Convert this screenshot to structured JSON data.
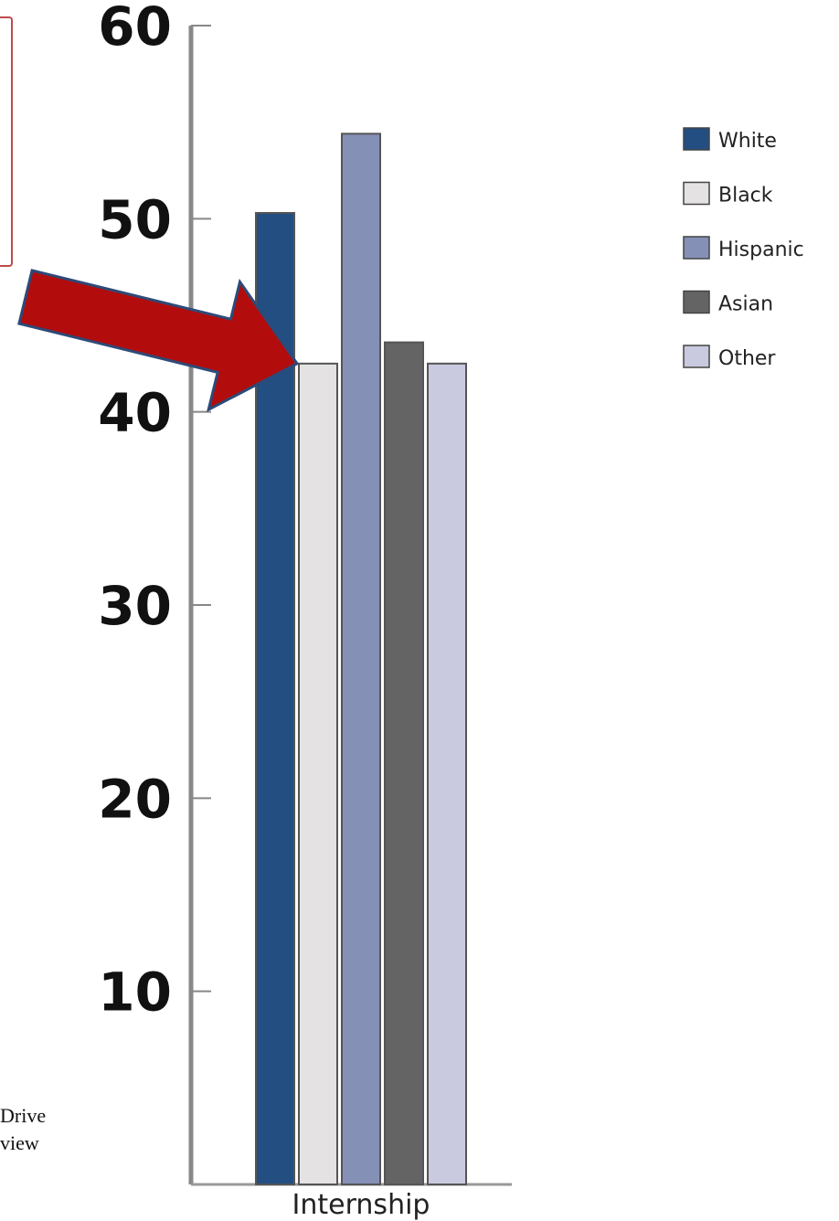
{
  "chart_data": {
    "type": "bar",
    "categories": [
      "Internship"
    ],
    "series": [
      {
        "name": "White",
        "values": [
          50.3
        ],
        "color": "#234e82"
      },
      {
        "name": "Black",
        "values": [
          42.5
        ],
        "color": "#e4e2e2"
      },
      {
        "name": "Hispanic",
        "values": [
          54.4
        ],
        "color": "#8490b6"
      },
      {
        "name": "Asian",
        "values": [
          43.6
        ],
        "color": "#646464"
      },
      {
        "name": "Other",
        "values": [
          42.5
        ],
        "color": "#c9cadf"
      }
    ],
    "yticks": [
      "10",
      "20",
      "30",
      "40",
      "50",
      "60"
    ],
    "ylim": [
      0,
      60
    ],
    "legend_position": "right",
    "grid": false,
    "annotation": {
      "type": "arrow",
      "color": "#b30c0c",
      "points_to_series": "Black"
    }
  },
  "page_text": {
    "fragment_line_1": "Drive",
    "fragment_line_2": "view"
  }
}
